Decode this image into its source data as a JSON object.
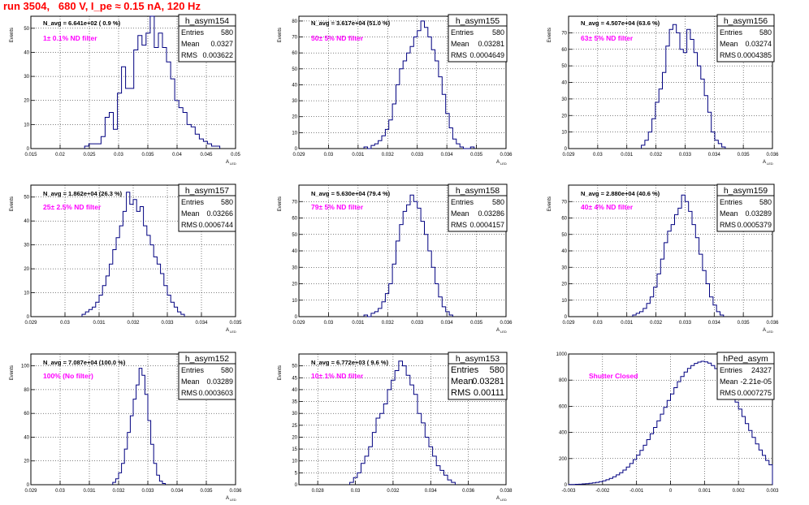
{
  "page_title": "run 3504,   680 V, I_pe ≈ 0.15 nA, 120 Hz",
  "colors": {
    "title": "#ff0000",
    "hist_line": "#000080",
    "annotation": "#ff00ff",
    "grid": "#000000"
  },
  "chart_data": [
    {
      "type": "histogram",
      "name": "h_asym154",
      "stats": {
        "Entries": "580",
        "Mean": "0.0327",
        "RMS": "0.003622"
      },
      "navg": "N_avg = 6.641e+02 ( 0.9 %)",
      "annotation": "1± 0.1% ND filter",
      "ylabel": "Events",
      "xlabel": "A",
      "xlabel_sub": "LED",
      "xlim": [
        0.015,
        0.05
      ],
      "ylim": [
        0,
        55
      ],
      "xticks": [
        0.015,
        0.02,
        0.025,
        0.03,
        0.035,
        0.04,
        0.045,
        0.05
      ],
      "xticklabels": [
        "0.015",
        "0.02",
        "0.025",
        "0.03",
        "0.035",
        "0.04",
        "0.045",
        "0.05"
      ],
      "yticks": [
        0,
        10,
        20,
        30,
        40,
        50
      ],
      "bins": {
        "start": 0.0242,
        "width": 0.0007,
        "counts": [
          1,
          2,
          2,
          2,
          5,
          13,
          15,
          8,
          23,
          34,
          25,
          25,
          41,
          47,
          43,
          48,
          55,
          42,
          48,
          42,
          36,
          29,
          20,
          17,
          15,
          10,
          9,
          6,
          4,
          3,
          2,
          1,
          1
        ]
      }
    },
    {
      "type": "histogram",
      "name": "h_asym155",
      "stats": {
        "Entries": "580",
        "Mean": "0.03281",
        "RMS": "0.0004649"
      },
      "navg": "N_avg = 3.617e+04 (51.0 %)",
      "annotation": "50± 5% ND filter",
      "ylabel": "Events",
      "xlabel": "A",
      "xlabel_sub": "LED",
      "xlim": [
        0.029,
        0.036
      ],
      "ylim": [
        0,
        83
      ],
      "xticks": [
        0.029,
        0.03,
        0.031,
        0.032,
        0.033,
        0.034,
        0.035,
        0.036
      ],
      "xticklabels": [
        "0.029",
        "0.03",
        "0.031",
        "0.032",
        "0.033",
        "0.034",
        "0.035",
        "0.036"
      ],
      "yticks": [
        0,
        10,
        20,
        30,
        40,
        50,
        60,
        70,
        80
      ],
      "bins": {
        "start": 0.0312,
        "width": 0.00012,
        "counts": [
          1,
          0,
          2,
          3,
          5,
          8,
          12,
          18,
          28,
          40,
          50,
          55,
          60,
          64,
          70,
          74,
          80,
          76,
          70,
          62,
          55,
          45,
          34,
          22,
          13,
          6,
          3,
          1,
          0,
          0,
          1
        ]
      }
    },
    {
      "type": "histogram",
      "name": "h_asym156",
      "stats": {
        "Entries": "580",
        "Mean": "0.03274",
        "RMS": "0.0004385"
      },
      "navg": "N_avg = 4.507e+04 (63.6 %)",
      "annotation": "63± 5% ND filter",
      "ylabel": "Events",
      "xlabel": "A",
      "xlabel_sub": "LED",
      "xlim": [
        0.029,
        0.036
      ],
      "ylim": [
        0,
        80
      ],
      "xticks": [
        0.029,
        0.03,
        0.031,
        0.032,
        0.033,
        0.034,
        0.035,
        0.036
      ],
      "xticklabels": [
        "0.029",
        "0.03",
        "0.031",
        "0.032",
        "0.033",
        "0.034",
        "0.035",
        "0.036"
      ],
      "yticks": [
        0,
        10,
        20,
        30,
        40,
        50,
        60,
        70
      ],
      "bins": {
        "start": 0.0315,
        "width": 0.00012,
        "counts": [
          2,
          5,
          10,
          18,
          28,
          36,
          46,
          62,
          72,
          75,
          70,
          60,
          58,
          72,
          66,
          58,
          50,
          42,
          32,
          22,
          10,
          5,
          3,
          1
        ]
      }
    },
    {
      "type": "histogram",
      "name": "h_asym157",
      "stats": {
        "Entries": "580",
        "Mean": "0.03266",
        "RMS": "0.0006744"
      },
      "navg": "N_avg = 1.862e+04 (26.3 %)",
      "annotation": "25± 2.5% ND filter",
      "ylabel": "Events",
      "xlabel": "A",
      "xlabel_sub": "LED",
      "xlim": [
        0.029,
        0.035
      ],
      "ylim": [
        0,
        55
      ],
      "xticks": [
        0.029,
        0.03,
        0.031,
        0.032,
        0.033,
        0.034,
        0.035
      ],
      "xticklabels": [
        "0.029",
        "0.03",
        "0.031",
        "0.032",
        "0.033",
        "0.034",
        "0.035"
      ],
      "yticks": [
        0,
        10,
        20,
        30,
        40,
        50
      ],
      "bins": {
        "start": 0.0305,
        "width": 0.0001,
        "counts": [
          1,
          2,
          3,
          4,
          6,
          9,
          13,
          17,
          22,
          28,
          33,
          38,
          44,
          52,
          47,
          49,
          44,
          46,
          38,
          34,
          30,
          25,
          22,
          18,
          13,
          9,
          6,
          4,
          2,
          1
        ]
      }
    },
    {
      "type": "histogram",
      "name": "h_asym158",
      "stats": {
        "Entries": "580",
        "Mean": "0.03286",
        "RMS": "0.0004157"
      },
      "navg": "N_avg = 5.630e+04 (79.4 %)",
      "annotation": "79± 5% ND filter",
      "ylabel": "Events",
      "xlabel": "A",
      "xlabel_sub": "LED",
      "xlim": [
        0.029,
        0.036
      ],
      "ylim": [
        0,
        80
      ],
      "xticks": [
        0.029,
        0.03,
        0.031,
        0.032,
        0.033,
        0.034,
        0.035,
        0.036
      ],
      "xticklabels": [
        "0.029",
        "0.03",
        "0.031",
        "0.032",
        "0.033",
        "0.034",
        "0.035",
        "0.036"
      ],
      "yticks": [
        0,
        10,
        20,
        30,
        40,
        50,
        60,
        70
      ],
      "bins": {
        "start": 0.0312,
        "width": 0.00012,
        "counts": [
          1,
          0,
          2,
          3,
          5,
          9,
          14,
          20,
          32,
          46,
          56,
          64,
          68,
          74,
          70,
          66,
          58,
          50,
          40,
          30,
          20,
          12,
          6,
          3,
          1
        ]
      }
    },
    {
      "type": "histogram",
      "name": "h_asym159",
      "stats": {
        "Entries": "580",
        "Mean": "0.03289",
        "RMS": "0.0005379"
      },
      "navg": "N_avg = 2.880e+04 (40.6 %)",
      "annotation": "40± 4% ND filter",
      "ylabel": "Events",
      "xlabel": "A",
      "xlabel_sub": "LED",
      "xlim": [
        0.029,
        0.036
      ],
      "ylim": [
        0,
        80
      ],
      "xticks": [
        0.029,
        0.03,
        0.031,
        0.032,
        0.033,
        0.034,
        0.035,
        0.036
      ],
      "xticklabels": [
        "0.029",
        "0.03",
        "0.031",
        "0.032",
        "0.033",
        "0.034",
        "0.035",
        "0.036"
      ],
      "yticks": [
        0,
        10,
        20,
        30,
        40,
        50,
        60,
        70
      ],
      "bins": {
        "start": 0.0312,
        "width": 0.00012,
        "counts": [
          1,
          2,
          3,
          5,
          8,
          12,
          18,
          26,
          35,
          45,
          52,
          56,
          62,
          66,
          74,
          70,
          64,
          56,
          48,
          38,
          28,
          20,
          12,
          7,
          3,
          1
        ]
      }
    },
    {
      "type": "histogram",
      "name": "h_asym152",
      "stats": {
        "Entries": "580",
        "Mean": "0.03289",
        "RMS": "0.0003603"
      },
      "navg": "N_avg = 7.087e+04 (100.0 %)",
      "annotation": "100% (No filter)",
      "ylabel": "Events",
      "xlabel": "A",
      "xlabel_sub": "LED",
      "xlim": [
        0.029,
        0.036
      ],
      "ylim": [
        0,
        110
      ],
      "xticks": [
        0.029,
        0.03,
        0.031,
        0.032,
        0.033,
        0.034,
        0.035,
        0.036
      ],
      "xticklabels": [
        "0.029",
        "0.03",
        "0.031",
        "0.032",
        "0.033",
        "0.034",
        "0.035",
        "0.036"
      ],
      "yticks": [
        0,
        20,
        40,
        60,
        80,
        100
      ],
      "bins": {
        "start": 0.0318,
        "width": 0.0001,
        "counts": [
          2,
          5,
          10,
          18,
          30,
          44,
          58,
          72,
          84,
          98,
          92,
          76,
          54,
          34,
          18,
          8,
          3,
          1
        ]
      }
    },
    {
      "type": "histogram",
      "name": "h_asym153",
      "stats": {
        "Entries": "580",
        "Mean": "0.03281",
        "RMS": "0.00111"
      },
      "navg": "N_avg = 6.772e+03 ( 9.6 %)",
      "annotation": "10± 1% ND filter",
      "ylabel": "Events",
      "xlabel": "A",
      "xlabel_sub": "LED",
      "xlim": [
        0.027,
        0.038
      ],
      "ylim": [
        0,
        55
      ],
      "xticks": [
        0.028,
        0.03,
        0.032,
        0.034,
        0.036,
        0.038
      ],
      "xticklabels": [
        "0.028",
        "0.03",
        "0.032",
        "0.034",
        "0.036",
        "0.038"
      ],
      "yticks": [
        0,
        5,
        10,
        15,
        20,
        25,
        30,
        35,
        40,
        45,
        50
      ],
      "bins": {
        "start": 0.0297,
        "width": 0.0002,
        "counts": [
          1,
          3,
          5,
          9,
          12,
          16,
          22,
          28,
          30,
          34,
          40,
          44,
          48,
          52,
          50,
          46,
          42,
          38,
          30,
          26,
          20,
          16,
          12,
          8,
          6,
          4,
          2,
          1
        ]
      }
    },
    {
      "type": "histogram",
      "name": "hPed_asym",
      "stats": {
        "Entries": "24327",
        "Mean": "-2.21e-05",
        "RMS": "0.0007275"
      },
      "navg": "",
      "annotation": "Shutter Closed",
      "ylabel": "",
      "xlabel": "",
      "xlabel_sub": "",
      "xlim": [
        -0.003,
        0.003
      ],
      "ylim": [
        0,
        1000
      ],
      "xticks": [
        -0.003,
        -0.002,
        -0.001,
        0,
        0.001,
        0.002,
        0.003
      ],
      "xticklabels": [
        "-0.003",
        "-0.002",
        "-0.001",
        "0",
        "0.001",
        "0.002",
        "0.003"
      ],
      "yticks": [
        0,
        200,
        400,
        600,
        800,
        1000
      ],
      "bins": {
        "start": -0.003,
        "width": 0.0001,
        "counts": [
          1,
          2,
          3,
          4,
          6,
          8,
          11,
          14,
          18,
          23,
          30,
          38,
          48,
          60,
          75,
          92,
          112,
          135,
          162,
          192,
          226,
          262,
          302,
          345,
          390,
          438,
          488,
          540,
          592,
          644,
          694,
          742,
          788,
          828,
          862,
          890,
          912,
          928,
          938,
          944,
          940,
          930,
          912,
          888,
          858,
          822,
          780,
          734,
          684,
          632,
          578,
          522,
          468,
          414,
          362,
          312,
          266,
          224,
          186,
          152
        ]
      }
    }
  ]
}
